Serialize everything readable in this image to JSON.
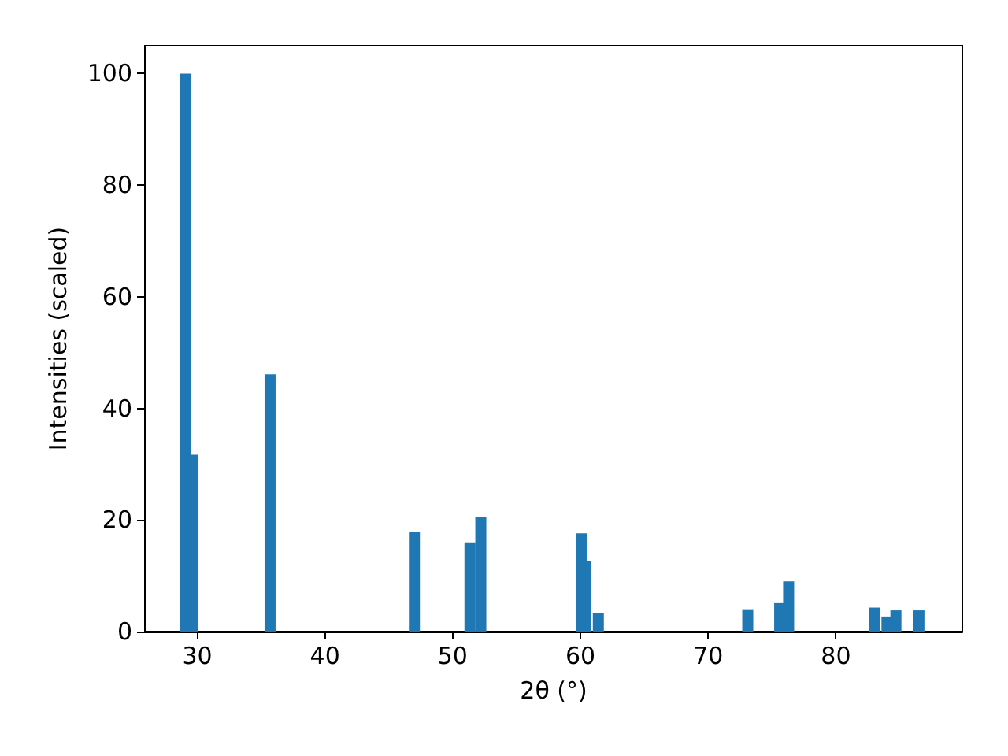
{
  "chart_data": {
    "type": "bar",
    "xlabel": "2θ (°)",
    "ylabel": "Intensities (scaled)",
    "x": [
      29.1,
      29.6,
      35.7,
      47.0,
      51.35,
      52.2,
      60.1,
      60.4,
      61.4,
      73.1,
      75.6,
      76.3,
      83.05,
      84.0,
      84.7,
      86.5
    ],
    "values": [
      100,
      31.7,
      46.1,
      17.9,
      16.0,
      20.6,
      17.6,
      12.7,
      3.3,
      4.0,
      5.1,
      9.0,
      4.3,
      2.7,
      3.8,
      3.8
    ],
    "color": "#1f77b4",
    "xlim": [
      25.9,
      89.9
    ],
    "xticks": [
      30,
      40,
      50,
      60,
      70,
      80
    ],
    "ylim": [
      0,
      105
    ],
    "yticks": [
      0,
      20,
      40,
      60,
      80,
      100
    ],
    "grid": false
  }
}
